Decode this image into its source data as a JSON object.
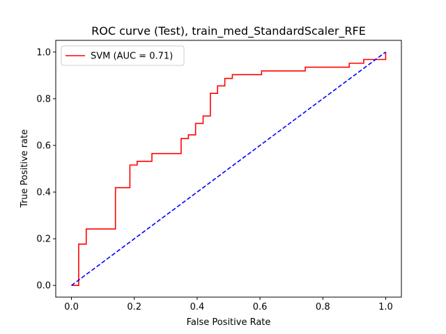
{
  "chart_data": {
    "type": "line",
    "title": "ROC curve (Test), train_med_StandardScaler_RFE",
    "xlabel": "False Positive Rate",
    "ylabel": "True Positive rate",
    "xlim": [
      -0.05,
      1.05
    ],
    "ylim": [
      -0.05,
      1.05
    ],
    "xticks": [
      "0.0",
      "0.2",
      "0.4",
      "0.6",
      "0.8",
      "1.0"
    ],
    "yticks": [
      "0.0",
      "0.2",
      "0.4",
      "0.6",
      "0.8",
      "1.0"
    ],
    "grid": false,
    "legend_position": "top-left",
    "series": [
      {
        "name": "SVM (AUC = 0.71)",
        "color": "#ff0000",
        "style": "solid",
        "x": [
          0.0,
          0.023,
          0.023,
          0.047,
          0.047,
          0.14,
          0.14,
          0.186,
          0.186,
          0.209,
          0.209,
          0.256,
          0.256,
          0.349,
          0.349,
          0.372,
          0.372,
          0.395,
          0.395,
          0.419,
          0.419,
          0.442,
          0.442,
          0.465,
          0.465,
          0.488,
          0.488,
          0.512,
          0.512,
          0.605,
          0.605,
          0.744,
          0.744,
          0.884,
          0.884,
          0.93,
          0.93,
          1.0,
          1.0
        ],
        "y": [
          0.0,
          0.0,
          0.177,
          0.177,
          0.242,
          0.242,
          0.419,
          0.419,
          0.516,
          0.516,
          0.532,
          0.532,
          0.565,
          0.565,
          0.629,
          0.629,
          0.645,
          0.645,
          0.694,
          0.694,
          0.726,
          0.726,
          0.823,
          0.823,
          0.855,
          0.855,
          0.887,
          0.887,
          0.903,
          0.903,
          0.919,
          0.919,
          0.935,
          0.935,
          0.952,
          0.952,
          0.968,
          0.968,
          1.0
        ]
      },
      {
        "name": "",
        "color": "#0000ff",
        "style": "dashed",
        "x": [
          0.0,
          1.0
        ],
        "y": [
          0.0,
          1.0
        ]
      }
    ]
  }
}
